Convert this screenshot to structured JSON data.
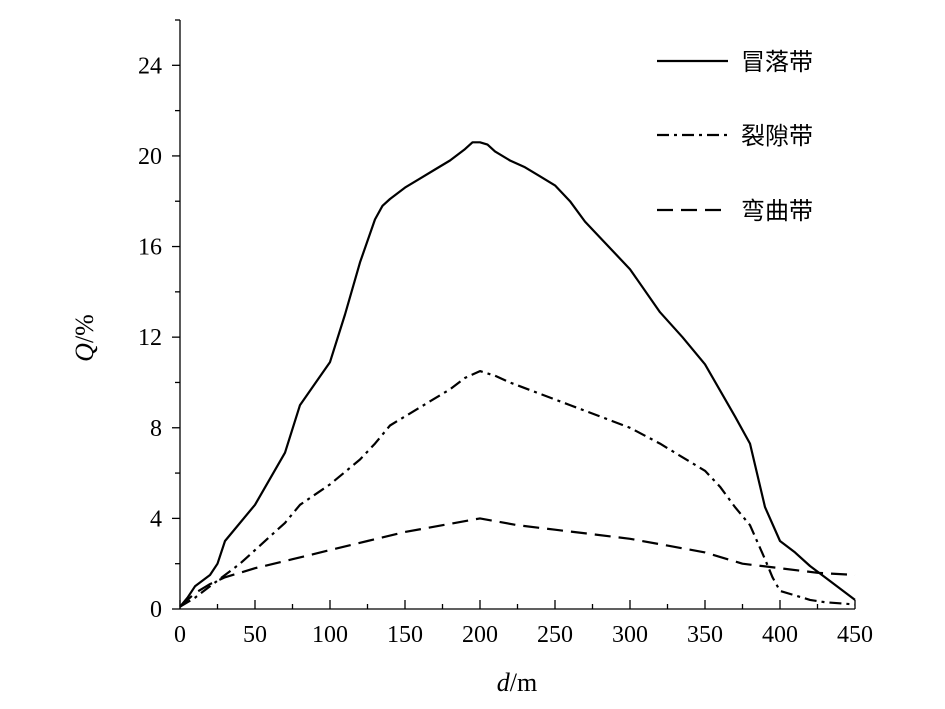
{
  "chart_data": {
    "type": "line",
    "xlabel": {
      "var": "d",
      "unit": "/m"
    },
    "ylabel": {
      "var": "Q",
      "unit": "/%"
    },
    "xlim": [
      0,
      450
    ],
    "ylim": [
      0,
      26
    ],
    "xticks": [
      0,
      50,
      100,
      150,
      200,
      250,
      300,
      350,
      400,
      450
    ],
    "yticks": [
      0,
      4,
      8,
      12,
      16,
      20,
      24
    ],
    "grid": false,
    "legend_position": "top-right",
    "series": [
      {
        "name": "冒落带",
        "dash": "solid",
        "x": [
          0,
          5,
          10,
          20,
          25,
          30,
          50,
          70,
          80,
          100,
          110,
          120,
          130,
          135,
          140,
          150,
          160,
          170,
          180,
          190,
          195,
          200,
          205,
          210,
          220,
          230,
          240,
          250,
          260,
          270,
          280,
          300,
          320,
          335,
          350,
          370,
          380,
          390,
          400,
          410,
          420,
          430,
          450
        ],
        "y": [
          0.1,
          0.5,
          1.0,
          1.5,
          2.0,
          3.0,
          4.6,
          6.9,
          9.0,
          10.9,
          13.0,
          15.3,
          17.2,
          17.8,
          18.1,
          18.6,
          19.0,
          19.4,
          19.8,
          20.3,
          20.6,
          20.6,
          20.5,
          20.2,
          19.8,
          19.5,
          19.1,
          18.7,
          18.0,
          17.1,
          16.4,
          15.0,
          13.1,
          12.0,
          10.8,
          8.5,
          7.3,
          4.5,
          3.0,
          2.5,
          1.9,
          1.4,
          0.4
        ]
      },
      {
        "name": "裂隙带",
        "dash": "dashdot",
        "x": [
          0,
          10,
          20,
          30,
          40,
          50,
          60,
          70,
          80,
          100,
          120,
          130,
          140,
          150,
          160,
          170,
          180,
          190,
          200,
          210,
          220,
          240,
          260,
          280,
          300,
          320,
          340,
          350,
          360,
          370,
          380,
          390,
          395,
          400,
          410,
          420,
          430,
          450
        ],
        "y": [
          0.1,
          0.5,
          1.0,
          1.5,
          2.0,
          2.6,
          3.2,
          3.8,
          4.6,
          5.5,
          6.6,
          7.3,
          8.1,
          8.5,
          8.9,
          9.3,
          9.7,
          10.2,
          10.5,
          10.3,
          10.0,
          9.5,
          9.0,
          8.5,
          8.0,
          7.3,
          6.5,
          6.1,
          5.4,
          4.5,
          3.7,
          2.2,
          1.4,
          0.8,
          0.6,
          0.4,
          0.3,
          0.2
        ]
      },
      {
        "name": "弯曲带",
        "dash": "dashed",
        "x": [
          0,
          10,
          20,
          30,
          50,
          75,
          100,
          125,
          150,
          175,
          200,
          225,
          250,
          275,
          300,
          325,
          350,
          375,
          400,
          425,
          450
        ],
        "y": [
          0.1,
          0.7,
          1.1,
          1.4,
          1.8,
          2.2,
          2.6,
          3.0,
          3.4,
          3.7,
          4.0,
          3.7,
          3.5,
          3.3,
          3.1,
          2.8,
          2.5,
          2.0,
          1.8,
          1.6,
          1.5
        ]
      }
    ]
  }
}
